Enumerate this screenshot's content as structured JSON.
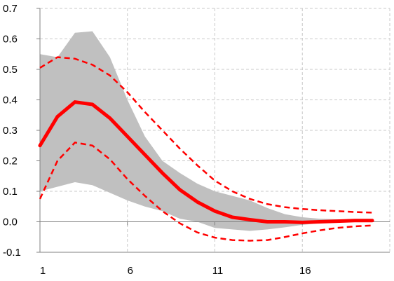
{
  "chart_data": {
    "type": "line",
    "title": "",
    "xlabel": "",
    "ylabel": "",
    "x": [
      1,
      2,
      3,
      4,
      5,
      6,
      7,
      8,
      9,
      10,
      11,
      12,
      13,
      14,
      15,
      16,
      17,
      18,
      19,
      20
    ],
    "x_tick_labels": [
      "1",
      "6",
      "11",
      "16"
    ],
    "x_tick_values": [
      1,
      6,
      11,
      16
    ],
    "y_tick_labels": [
      "-0.1",
      "0.0",
      "0.1",
      "0.2",
      "0.3",
      "0.4",
      "0.5",
      "0.6",
      "0.7"
    ],
    "y_tick_values": [
      -0.1,
      0.0,
      0.1,
      0.2,
      0.3,
      0.4,
      0.5,
      0.6,
      0.7
    ],
    "xlim": [
      1,
      21
    ],
    "ylim": [
      -0.1,
      0.7
    ],
    "grid": true,
    "legend": false,
    "band": {
      "color": "#c0c0c0",
      "upper": [
        0.55,
        0.54,
        0.62,
        0.625,
        0.54,
        0.4,
        0.28,
        0.2,
        0.16,
        0.125,
        0.1,
        0.085,
        0.07,
        0.045,
        0.025,
        0.015,
        0.01,
        0.008,
        0.006,
        0.005
      ],
      "lower": [
        0.1,
        0.115,
        0.13,
        0.12,
        0.095,
        0.07,
        0.05,
        0.035,
        0.01,
        0.0,
        -0.02,
        -0.025,
        -0.03,
        -0.025,
        -0.018,
        -0.01,
        -0.005,
        -0.002,
        0.0,
        0.0
      ]
    },
    "series": [
      {
        "style": "solid",
        "color": "#ff0000",
        "values": [
          0.25,
          0.345,
          0.393,
          0.385,
          0.34,
          0.28,
          0.22,
          0.16,
          0.105,
          0.065,
          0.035,
          0.015,
          0.007,
          0.0,
          0.0,
          -0.002,
          0.0,
          0.002,
          0.004,
          0.004
        ]
      },
      {
        "style": "dashed",
        "color": "#ff0000",
        "values": [
          0.505,
          0.54,
          0.535,
          0.515,
          0.48,
          0.425,
          0.36,
          0.3,
          0.24,
          0.185,
          0.135,
          0.1,
          0.075,
          0.058,
          0.048,
          0.042,
          0.038,
          0.035,
          0.032,
          0.03
        ]
      },
      {
        "style": "dashed",
        "color": "#ff0000",
        "values": [
          0.075,
          0.2,
          0.26,
          0.25,
          0.205,
          0.14,
          0.085,
          0.035,
          -0.005,
          -0.035,
          -0.052,
          -0.06,
          -0.062,
          -0.06,
          -0.05,
          -0.038,
          -0.028,
          -0.02,
          -0.015,
          -0.012
        ]
      }
    ]
  }
}
